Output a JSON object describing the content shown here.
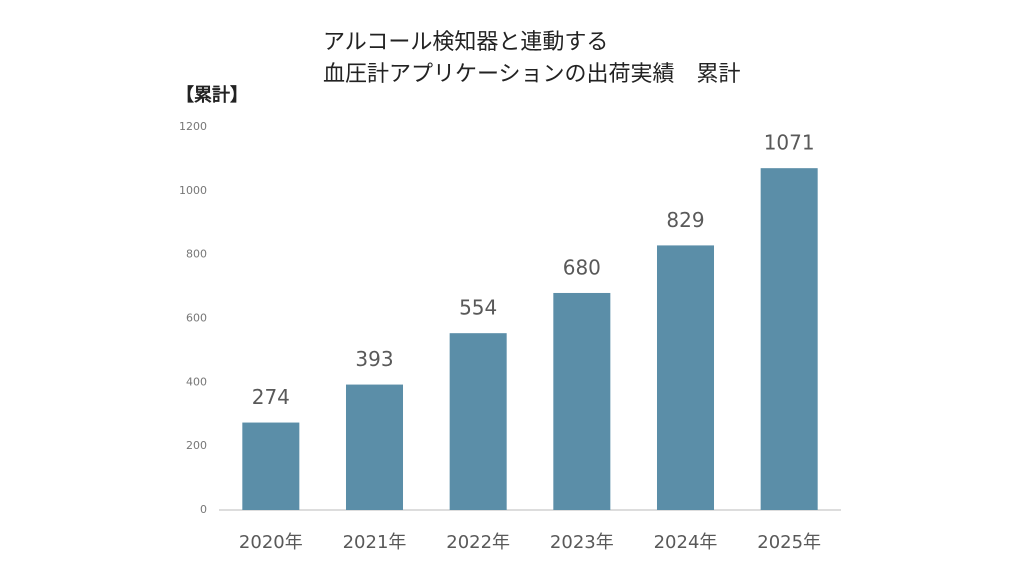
{
  "chart_data": {
    "type": "bar",
    "title": [
      "アルコール検知器と連動する",
      "血圧計アプリケーションの出荷実績　累計"
    ],
    "y_label": "【累計】",
    "categories": [
      "2020年",
      "2021年",
      "2022年",
      "2023年",
      "2024年",
      "2025年"
    ],
    "values": [
      274,
      393,
      554,
      680,
      829,
      1071
    ],
    "color": "#5b8ea8",
    "ylim": [
      0,
      1200
    ],
    "yticks": [
      0,
      200,
      400,
      600,
      800,
      1000,
      1200
    ],
    "grid": false
  }
}
